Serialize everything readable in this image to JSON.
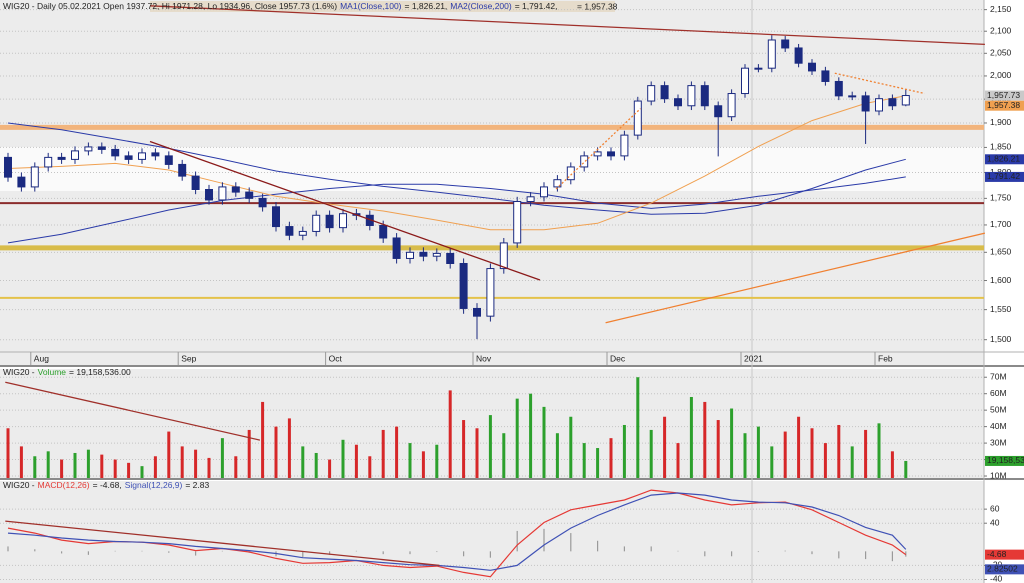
{
  "chart_data": [
    {
      "type": "candlestick",
      "title": "WIG20 - Daily 05.02.2021 Open 1937.72, Hi 1971.28, Lo 1934.96, Close 1957.73 (1.6%)",
      "categories": [
        null,
        null,
        "Aug",
        null,
        null,
        null,
        null,
        null,
        null,
        null,
        null,
        null,
        null,
        "Sep",
        null,
        null,
        null,
        null,
        null,
        null,
        null,
        null,
        null,
        null,
        "Oct",
        null,
        null,
        null,
        null,
        null,
        null,
        null,
        null,
        null,
        null,
        "Nov",
        null,
        null,
        null,
        null,
        null,
        null,
        null,
        null,
        null,
        "Dec",
        null,
        null,
        null,
        null,
        null,
        null,
        null,
        null,
        null,
        "2021",
        null,
        null,
        null,
        null,
        null,
        null,
        null,
        null,
        null,
        "Feb",
        null,
        null
      ],
      "log_y": true,
      "ylim": [
        1480,
        2168
      ],
      "yticks": [
        {
          "value": 2150,
          "label": "2,150"
        },
        {
          "value": 2100,
          "label": "2,100"
        },
        {
          "value": 2050,
          "label": "2,050"
        },
        {
          "value": 2000,
          "label": "2,000"
        },
        {
          "value": 1950,
          "label": "1,950"
        },
        {
          "value": 1900,
          "label": "1,900"
        },
        {
          "value": 1850,
          "label": "1,850"
        },
        {
          "value": 1800,
          "label": "1,800"
        },
        {
          "value": 1750,
          "label": "1,750"
        },
        {
          "value": 1700,
          "label": "1,700"
        },
        {
          "value": 1650,
          "label": "1,650"
        },
        {
          "value": 1600,
          "label": "1,600"
        },
        {
          "value": 1550,
          "label": "1,550"
        },
        {
          "value": 1500,
          "label": "1,500"
        }
      ],
      "grid": true,
      "up_color": "#ffffff",
      "down_color": "#1b2a80",
      "candles": {
        "open": [
          1830,
          1791,
          1772,
          1811,
          1830,
          1826,
          1843,
          1851,
          1846,
          1833,
          1826,
          1839,
          1833,
          1816,
          1793,
          1767,
          1747,
          1772,
          1762,
          1750,
          1734,
          1697,
          1681,
          1688,
          1718,
          1695,
          1721,
          1718,
          1699,
          1676,
          1639,
          1650,
          1643,
          1648,
          1630,
          1552,
          1539,
          1621,
          1667,
          1744,
          1753,
          1772,
          1786,
          1811,
          1833,
          1841,
          1833,
          1875,
          1946,
          1979,
          1951,
          1936,
          1979,
          1936,
          1913,
          1962,
          2017,
          2017,
          2080,
          2062,
          2028,
          2011,
          1988,
          1957,
          1957,
          1925,
          1951,
          1937.72
        ],
        "high": [
          1839,
          1800,
          1820,
          1839,
          1839,
          1852,
          1860,
          1860,
          1855,
          1842,
          1848,
          1848,
          1842,
          1825,
          1802,
          1776,
          1781,
          1781,
          1771,
          1759,
          1743,
          1706,
          1697,
          1727,
          1727,
          1730,
          1730,
          1727,
          1708,
          1685,
          1659,
          1659,
          1657,
          1657,
          1639,
          1561,
          1630,
          1676,
          1753,
          1762,
          1781,
          1795,
          1820,
          1842,
          1850,
          1850,
          1884,
          1955,
          1988,
          1988,
          1960,
          1988,
          1988,
          1945,
          1971,
          2026,
          2026,
          2091,
          2089,
          2071,
          2037,
          2020,
          1997,
          1966,
          1966,
          1960,
          1960,
          1971.28
        ],
        "low": [
          1782,
          1763,
          1763,
          1802,
          1817,
          1817,
          1834,
          1837,
          1824,
          1817,
          1817,
          1824,
          1807,
          1784,
          1758,
          1738,
          1738,
          1753,
          1741,
          1725,
          1688,
          1672,
          1672,
          1679,
          1686,
          1686,
          1709,
          1690,
          1667,
          1630,
          1630,
          1634,
          1634,
          1621,
          1543,
          1501,
          1530,
          1612,
          1658,
          1735,
          1744,
          1763,
          1777,
          1802,
          1824,
          1824,
          1824,
          1866,
          1937,
          1942,
          1927,
          1927,
          1927,
          1832,
          1904,
          1953,
          2008,
          2008,
          2053,
          2019,
          2002,
          1979,
          1948,
          1948,
          1857,
          1916,
          1927,
          1934.96
        ],
        "close": [
          1791,
          1772,
          1811,
          1830,
          1826,
          1843,
          1851,
          1846,
          1833,
          1826,
          1839,
          1833,
          1816,
          1793,
          1767,
          1747,
          1772,
          1762,
          1750,
          1734,
          1697,
          1681,
          1688,
          1718,
          1695,
          1721,
          1718,
          1699,
          1676,
          1639,
          1650,
          1643,
          1648,
          1630,
          1552,
          1539,
          1621,
          1667,
          1744,
          1753,
          1772,
          1786,
          1811,
          1833,
          1841,
          1833,
          1875,
          1946,
          1979,
          1951,
          1936,
          1979,
          1936,
          1913,
          1962,
          2017,
          2017,
          2080,
          2062,
          2028,
          2011,
          1988,
          1957,
          1957,
          1925,
          1951,
          1936,
          1957.73
        ]
      },
      "close_flag": "1,957.73",
      "series": [
        {
          "name": "MA1(Close,100)",
          "value_label": "= 1,826.21,",
          "flag": "1,826.21",
          "color": "#2a3aa8",
          "x": [
            0,
            4,
            8,
            12,
            16,
            20,
            24,
            28,
            32,
            36,
            40,
            44,
            48,
            52,
            56,
            60,
            64,
            67
          ],
          "values": [
            1900,
            1886,
            1867,
            1848,
            1826,
            1803,
            1787,
            1773,
            1762,
            1750,
            1737,
            1728,
            1720,
            1722,
            1737,
            1769,
            1805,
            1826.21
          ]
        },
        {
          "name": "MA2(Close,200)",
          "value_label": "= 1,791.42,",
          "flag": "1,791.42",
          "color": "#2a3aa8",
          "x": [
            0,
            4,
            8,
            12,
            16,
            20,
            24,
            28,
            32,
            36,
            40,
            44,
            48,
            52,
            56,
            60,
            64,
            67
          ],
          "values": [
            1667,
            1683,
            1705,
            1728,
            1746,
            1758,
            1769,
            1777,
            1777,
            1769,
            1758,
            1741,
            1731,
            1739,
            1754,
            1766,
            1779,
            1791.42
          ]
        },
        {
          "value_label": "= 1,957.38",
          "flag": "1,957.38",
          "color": "#f0a050",
          "x": [
            0,
            4,
            8,
            12,
            16,
            20,
            24,
            28,
            32,
            36,
            40,
            44,
            48,
            52,
            56,
            60,
            64,
            67
          ],
          "values": [
            1808,
            1812,
            1818,
            1805,
            1779,
            1754,
            1739,
            1726,
            1709,
            1691,
            1691,
            1703,
            1741,
            1793,
            1852,
            1905,
            1941,
            1957.38
          ]
        }
      ],
      "levels": [
        {
          "value": 1891,
          "color": "#f2b47c",
          "thick": true
        },
        {
          "value": 1741,
          "color": "#8b2c2c",
          "thick": false
        },
        {
          "value": 1658,
          "color": "#d8bc4a",
          "thick": true
        },
        {
          "value": 1570,
          "color": "#e4c24a",
          "thick": false
        }
      ],
      "trendlines": [
        {
          "x": [
            10.6,
            39.7
          ],
          "values": [
            1862,
            1601
          ],
          "color": "#8b1a1a",
          "dashed": false
        },
        {
          "x": [
            10.6,
            72.9
          ],
          "values": [
            2159,
            2070
          ],
          "color": "#a0302a",
          "dashed": false
        },
        {
          "x": [
            44.6,
            72.9
          ],
          "values": [
            1528,
            1685
          ],
          "color": "#f08030",
          "dashed": false
        },
        {
          "x": [
            40.9,
            47.2
          ],
          "values": [
            1768,
            1930
          ],
          "color": "#f08030",
          "dashed": true
        },
        {
          "x": [
            61.7,
            68.4
          ],
          "values": [
            2006,
            1962
          ],
          "color": "#f08030",
          "dashed": true
        }
      ]
    },
    {
      "type": "bar",
      "title": "WIG20 -",
      "ylim": [
        8.8,
        75
      ],
      "yticks": [
        {
          "value": 70,
          "label": "70M"
        },
        {
          "value": 60,
          "label": "60M"
        },
        {
          "value": 50,
          "label": "50M"
        },
        {
          "value": 40,
          "label": "40M"
        },
        {
          "value": 30,
          "label": "30M"
        },
        {
          "value": 20,
          "label": "20M"
        },
        {
          "value": 10,
          "label": "10M"
        }
      ],
      "grid": true,
      "up_color": "#2ca02c",
      "down_color": "#d62728",
      "series": [
        {
          "name": "Volume",
          "value_label": "= 19,158,536.00",
          "flag": "19,158,53",
          "color": "#2ca02c",
          "values": [
            39,
            28,
            22,
            25,
            20,
            24,
            26,
            23,
            20,
            18,
            16,
            22,
            37,
            28,
            26,
            21,
            33,
            22,
            38,
            55,
            40,
            45,
            28,
            24,
            20,
            32,
            29,
            22,
            38,
            40,
            30,
            25,
            29,
            62,
            44,
            39,
            47,
            36,
            57,
            60,
            52,
            36,
            46,
            30,
            27,
            33,
            41,
            70,
            38,
            46,
            30,
            58,
            55,
            44,
            51,
            36,
            40,
            28,
            37,
            46,
            39,
            30,
            41,
            28,
            38,
            42,
            25,
            19.158536
          ]
        }
      ],
      "trendlines": [
        {
          "x": [
            -0.2,
            18.8
          ],
          "values": [
            67,
            31.8
          ],
          "color": "#a0302a",
          "dashed": false
        }
      ]
    },
    {
      "type": "line",
      "title": "WIG20 -",
      "ylim": [
        -45,
        100
      ],
      "yticks": [
        60,
        40,
        -20,
        -40
      ],
      "grid": true,
      "x": [
        0,
        2,
        4,
        6,
        8,
        10,
        12,
        14,
        16,
        18,
        20,
        22,
        24,
        26,
        28,
        30,
        32,
        34,
        36,
        38,
        40,
        42,
        44,
        46,
        48,
        50,
        52,
        54,
        56,
        58,
        60,
        62,
        64,
        66,
        67
      ],
      "series": [
        {
          "name": "MACD(12,26)",
          "value_label": "= -4.68,",
          "flag": "-4.68",
          "color": "#e53935",
          "values": [
            33,
            26,
            16,
            11,
            14,
            13,
            9,
            1,
            4,
            -1,
            -10,
            -17,
            -16,
            -13,
            -20,
            -23,
            -21,
            -30,
            -36,
            9,
            41,
            59,
            66,
            73,
            87,
            83,
            73,
            66,
            69,
            70,
            59,
            41,
            23,
            9,
            -4.68
          ]
        },
        {
          "name": "Signal(12,26,9)",
          "value_label": "= 2.83",
          "flag": "2.82502",
          "color": "#3f51b5",
          "values": [
            26,
            23,
            19,
            16,
            14,
            13,
            11,
            7,
            4,
            1,
            -3,
            -9,
            -11,
            -13,
            -16,
            -19,
            -20,
            -23,
            -27,
            -20,
            9,
            33,
            51,
            66,
            80,
            83,
            80,
            73,
            70,
            69,
            63,
            51,
            34,
            23,
            2.83
          ]
        }
      ],
      "histogram": {
        "color": "#9a9a9a",
        "values": [
          7,
          3,
          -3,
          -5,
          0,
          0,
          -2,
          -6,
          0,
          -2,
          -7,
          -8,
          -5,
          0,
          -4,
          -4,
          -1,
          -7,
          -9,
          29,
          32,
          26,
          15,
          7,
          7,
          0,
          -7,
          -7,
          -1,
          1,
          -4,
          -10,
          -11,
          -14,
          -7.51
        ]
      },
      "trendlines": [
        {
          "x": [
            -0.2,
            32.2
          ],
          "values": [
            43,
            -20
          ],
          "color": "#a0302a",
          "dashed": false
        }
      ]
    }
  ]
}
